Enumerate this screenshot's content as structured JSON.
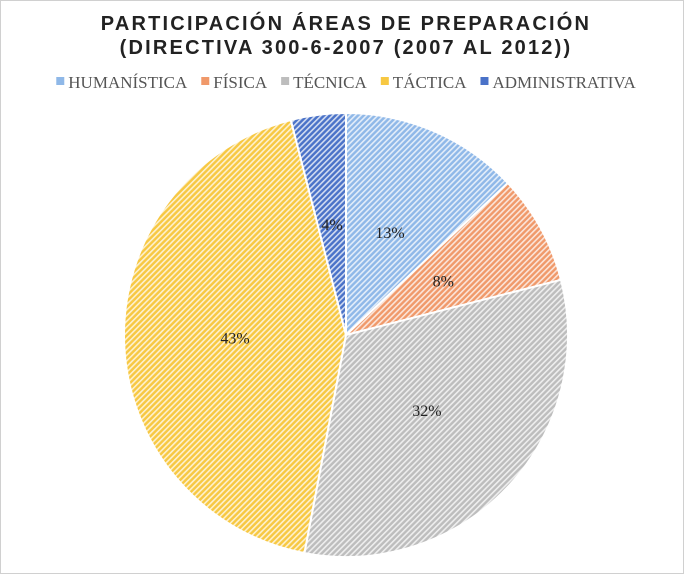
{
  "chart_data": {
    "type": "pie",
    "title": [
      "PARTICIPACIÓN ÁREAS DE PREPARACIÓN",
      "(DIRECTIVA 300-6-2007 (2007 AL 2012))"
    ],
    "categories": [
      "HUMANÍSTICA",
      "FÍSICA",
      "TÉCNICA",
      "TÁCTICA",
      "ADMINISTRATIVA"
    ],
    "values": [
      13,
      8,
      32,
      43,
      4
    ],
    "value_labels": [
      "13%",
      "8%",
      "32%",
      "43%",
      "4%"
    ],
    "colors": [
      "#8fb8e8",
      "#f0996a",
      "#bdbdbd",
      "#f7c842",
      "#4a72c8"
    ],
    "legend": "top"
  }
}
